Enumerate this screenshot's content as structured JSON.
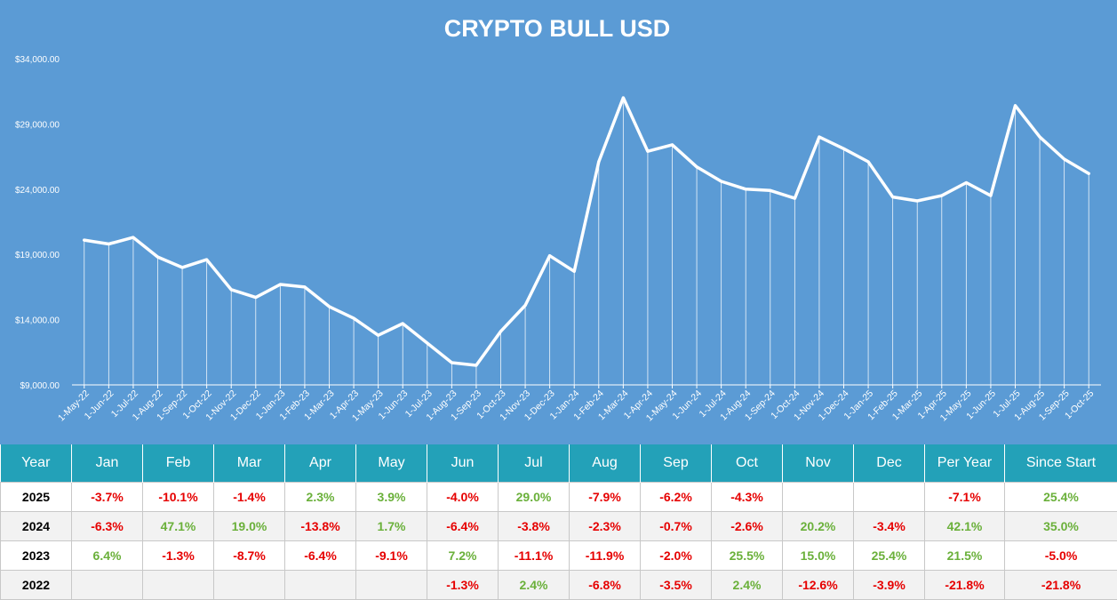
{
  "chart_data": {
    "type": "line",
    "title": "CRYPTO BULL USD",
    "xlabel": "",
    "ylabel": "",
    "ylim": [
      9000,
      34000
    ],
    "yticks": [
      9000,
      14000,
      19000,
      24000,
      29000,
      34000
    ],
    "ytick_labels": [
      "$9,000.00",
      "$14,000.00",
      "$19,000.00",
      "$24,000.00",
      "$29,000.00",
      "$34,000.00"
    ],
    "grid": false,
    "drop_lines": true,
    "line_color": "#ffffff",
    "background_color": "#5b9bd5",
    "categories": [
      "1-May-22",
      "1-Jun-22",
      "1-Jul-22",
      "1-Aug-22",
      "1-Sep-22",
      "1-Oct-22",
      "1-Nov-22",
      "1-Dec-22",
      "1-Jan-23",
      "1-Feb-23",
      "1-Mar-23",
      "1-Apr-23",
      "1-May-23",
      "1-Jun-23",
      "1-Jul-23",
      "1-Aug-23",
      "1-Sep-23",
      "1-Oct-23",
      "1-Nov-23",
      "1-Dec-23",
      "1-Jan-24",
      "1-Feb-24",
      "1-Mar-24",
      "1-Apr-24",
      "1-May-24",
      "1-Jun-24",
      "1-Jul-24",
      "1-Aug-24",
      "1-Sep-24",
      "1-Oct-24",
      "1-Nov-24",
      "1-Dec-24",
      "1-Jan-25",
      "1-Feb-25",
      "1-Mar-25",
      "1-Apr-25",
      "1-May-25",
      "1-Jun-25",
      "1-Jul-25",
      "1-Aug-25",
      "1-Sep-25",
      "1-Oct-25"
    ],
    "values": [
      20100,
      19800,
      20300,
      18800,
      18000,
      18600,
      16300,
      15700,
      16700,
      16500,
      15000,
      14100,
      12800,
      13700,
      12200,
      10700,
      10500,
      13100,
      15100,
      18900,
      17700,
      26100,
      31000,
      26900,
      27400,
      25700,
      24600,
      24000,
      23900,
      23300,
      28000,
      27100,
      26100,
      23400,
      23100,
      23500,
      24500,
      23500,
      30400,
      28000,
      26300,
      25200
    ]
  },
  "table": {
    "headers": [
      "Year",
      "Jan",
      "Feb",
      "Mar",
      "Apr",
      "May",
      "Jun",
      "Jul",
      "Aug",
      "Sep",
      "Oct",
      "Nov",
      "Dec",
      "Per Year",
      "Since Start"
    ],
    "rows": [
      {
        "year": "2025",
        "cells": [
          "-3.7%",
          "-10.1%",
          "-1.4%",
          "2.3%",
          "3.9%",
          "-4.0%",
          "29.0%",
          "-7.9%",
          "-6.2%",
          "-4.3%",
          "",
          "",
          "-7.1%",
          "25.4%"
        ]
      },
      {
        "year": "2024",
        "cells": [
          "-6.3%",
          "47.1%",
          "19.0%",
          "-13.8%",
          "1.7%",
          "-6.4%",
          "-3.8%",
          "-2.3%",
          "-0.7%",
          "-2.6%",
          "20.2%",
          "-3.4%",
          "42.1%",
          "35.0%"
        ]
      },
      {
        "year": "2023",
        "cells": [
          "6.4%",
          "-1.3%",
          "-8.7%",
          "-6.4%",
          "-9.1%",
          "7.2%",
          "-11.1%",
          "-11.9%",
          "-2.0%",
          "25.5%",
          "15.0%",
          "25.4%",
          "21.5%",
          "-5.0%"
        ]
      },
      {
        "year": "2022",
        "cells": [
          "",
          "",
          "",
          "",
          "",
          "-1.3%",
          "2.4%",
          "-6.8%",
          "-3.5%",
          "2.4%",
          "-12.6%",
          "-3.9%",
          "-21.8%",
          "-21.8%"
        ]
      }
    ],
    "positive_color": "#6ab03a",
    "negative_color": "#e60000",
    "header_color": "#23a1b8"
  }
}
